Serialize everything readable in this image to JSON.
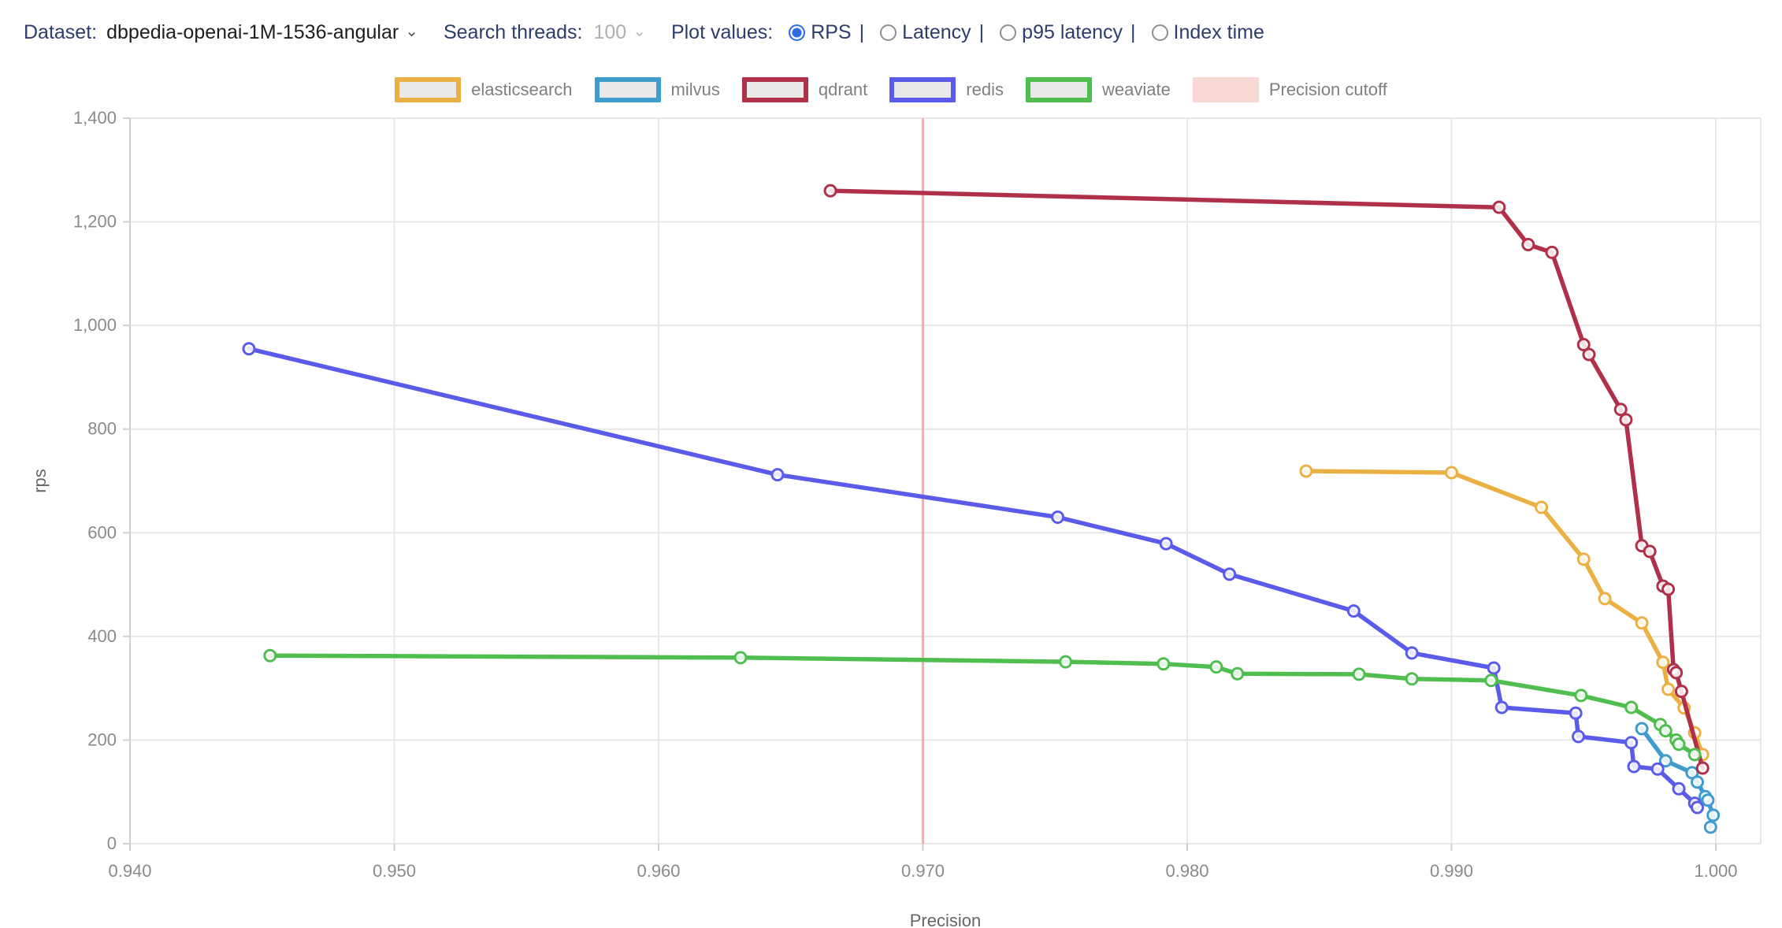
{
  "header": {
    "dataset_label": "Dataset:",
    "dataset_value": "dbpedia-openai-1M-1536-angular",
    "search_threads_label": "Search threads:",
    "search_threads_value": "100",
    "plot_values_label": "Plot values:",
    "separator": "|",
    "radio_options": [
      {
        "label": "RPS",
        "selected": true
      },
      {
        "label": "Latency",
        "selected": false
      },
      {
        "label": "p95 latency",
        "selected": false
      },
      {
        "label": "Index time",
        "selected": false
      }
    ]
  },
  "legend": {
    "cutoff_label": "Precision cutoff",
    "cutoff_swatch_color": "#f8d8d5"
  },
  "chart_data": {
    "type": "line",
    "title": "",
    "xlabel": "Precision",
    "ylabel": "rps",
    "xlim": [
      0.94,
      1.0
    ],
    "ylim": [
      0,
      1400
    ],
    "x_ticks": [
      0.94,
      0.95,
      0.96,
      0.97,
      0.98,
      0.99,
      1.0
    ],
    "y_ticks": [
      0,
      200,
      400,
      600,
      800,
      1000,
      1200,
      1400
    ],
    "grid": true,
    "legend_position": "top",
    "cutoff_x": 0.97,
    "cutoff_line_color": "#e4968c",
    "series": [
      {
        "name": "elasticsearch",
        "color": "#ebb043",
        "points": [
          [
            0.9845,
            719
          ],
          [
            0.99,
            716
          ],
          [
            0.9934,
            649
          ],
          [
            0.995,
            549
          ],
          [
            0.9958,
            473
          ],
          [
            0.9972,
            426
          ],
          [
            0.998,
            350
          ],
          [
            0.9982,
            298
          ],
          [
            0.9988,
            262
          ],
          [
            0.9992,
            214
          ],
          [
            0.9995,
            172
          ]
        ]
      },
      {
        "name": "milvus",
        "color": "#3f9ccc",
        "points": [
          [
            0.9972,
            222
          ],
          [
            0.9981,
            160
          ],
          [
            0.9991,
            137
          ],
          [
            0.9993,
            119
          ],
          [
            0.9996,
            91
          ],
          [
            0.9997,
            84
          ],
          [
            0.9999,
            55
          ],
          [
            0.9998,
            32
          ]
        ]
      },
      {
        "name": "qdrant",
        "color": "#b0304a",
        "points": [
          [
            0.9665,
            1260
          ],
          [
            0.9918,
            1228
          ],
          [
            0.9929,
            1156
          ],
          [
            0.9938,
            1141
          ],
          [
            0.995,
            963
          ],
          [
            0.9952,
            944
          ],
          [
            0.9964,
            838
          ],
          [
            0.9966,
            818
          ],
          [
            0.9972,
            575
          ],
          [
            0.9975,
            564
          ],
          [
            0.998,
            497
          ],
          [
            0.9982,
            491
          ],
          [
            0.9984,
            336
          ],
          [
            0.9985,
            330
          ],
          [
            0.9987,
            294
          ],
          [
            0.9995,
            146
          ]
        ]
      },
      {
        "name": "redis",
        "color": "#5a5be8",
        "points": [
          [
            0.9445,
            955
          ],
          [
            0.9645,
            712
          ],
          [
            0.9751,
            630
          ],
          [
            0.9792,
            579
          ],
          [
            0.9816,
            520
          ],
          [
            0.9863,
            449
          ],
          [
            0.9885,
            368
          ],
          [
            0.9916,
            339
          ],
          [
            0.9919,
            263
          ],
          [
            0.9947,
            252
          ],
          [
            0.9948,
            207
          ],
          [
            0.9968,
            195
          ],
          [
            0.9969,
            149
          ],
          [
            0.9978,
            144
          ],
          [
            0.9986,
            106
          ],
          [
            0.9992,
            78
          ],
          [
            0.9993,
            70
          ]
        ]
      },
      {
        "name": "weaviate",
        "color": "#4fbe4f",
        "points": [
          [
            0.9453,
            363
          ],
          [
            0.9631,
            359
          ],
          [
            0.9754,
            351
          ],
          [
            0.9791,
            347
          ],
          [
            0.9811,
            341
          ],
          [
            0.9819,
            328
          ],
          [
            0.9865,
            327
          ],
          [
            0.9885,
            318
          ],
          [
            0.9915,
            315
          ],
          [
            0.9949,
            286
          ],
          [
            0.9968,
            263
          ],
          [
            0.9979,
            230
          ],
          [
            0.9981,
            218
          ],
          [
            0.9985,
            200
          ],
          [
            0.9986,
            192
          ],
          [
            0.9992,
            172
          ]
        ]
      }
    ]
  },
  "colors": {
    "header_text": "#2d3c6b",
    "radio_selected": "#2d6be4",
    "grid": "#e7e7e7",
    "axis_line": "#d0d0d0",
    "tick_text": "#8a8a8a",
    "axis_title_text": "#666666",
    "legend_text": "#7f7f7f"
  }
}
